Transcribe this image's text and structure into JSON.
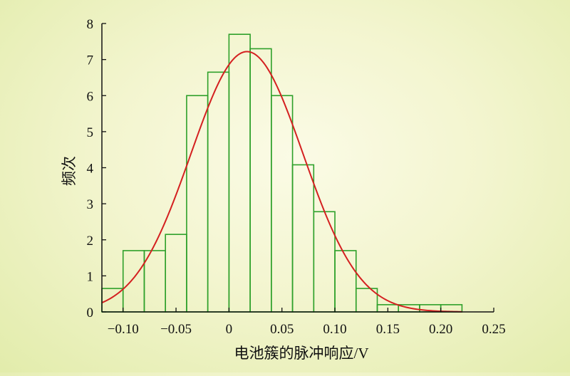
{
  "chart_data": {
    "type": "bar",
    "title": "",
    "xlabel": "电池簇的脉冲响应/V",
    "ylabel": "频次",
    "xlim": [
      -0.12,
      0.25
    ],
    "ylim": [
      0,
      8
    ],
    "x_ticks": [
      "−0.10",
      "−0.05",
      "0",
      "0.05",
      "0.10",
      "0.15",
      "0.20",
      "0.25"
    ],
    "x_tick_values": [
      -0.1,
      -0.05,
      0,
      0.05,
      0.1,
      0.15,
      0.2,
      0.25
    ],
    "y_ticks": [
      "0",
      "1",
      "2",
      "3",
      "4",
      "5",
      "6",
      "7",
      "8"
    ],
    "y_tick_values": [
      0,
      1,
      2,
      3,
      4,
      5,
      6,
      7,
      8
    ],
    "bin_edges": [
      -0.12,
      -0.1,
      -0.08,
      -0.06,
      -0.04,
      -0.02,
      0.0,
      0.02,
      0.04,
      0.06,
      0.08,
      0.1,
      0.12,
      0.14,
      0.16,
      0.18,
      0.2,
      0.22
    ],
    "values": [
      0.65,
      1.7,
      1.7,
      2.15,
      6.0,
      6.65,
      7.7,
      7.3,
      6.0,
      4.08,
      2.78,
      1.7,
      0.65,
      0.2,
      0.2,
      0.2,
      0.2
    ],
    "fit_curve": {
      "type": "normal",
      "mean": 0.017,
      "std": 0.053,
      "peak": 7.22,
      "x_range": [
        -0.12,
        0.22
      ]
    },
    "grid": false,
    "colors": {
      "bar_edge": "#2ea02a",
      "curve": "#d42020",
      "axis": "#111111"
    }
  }
}
